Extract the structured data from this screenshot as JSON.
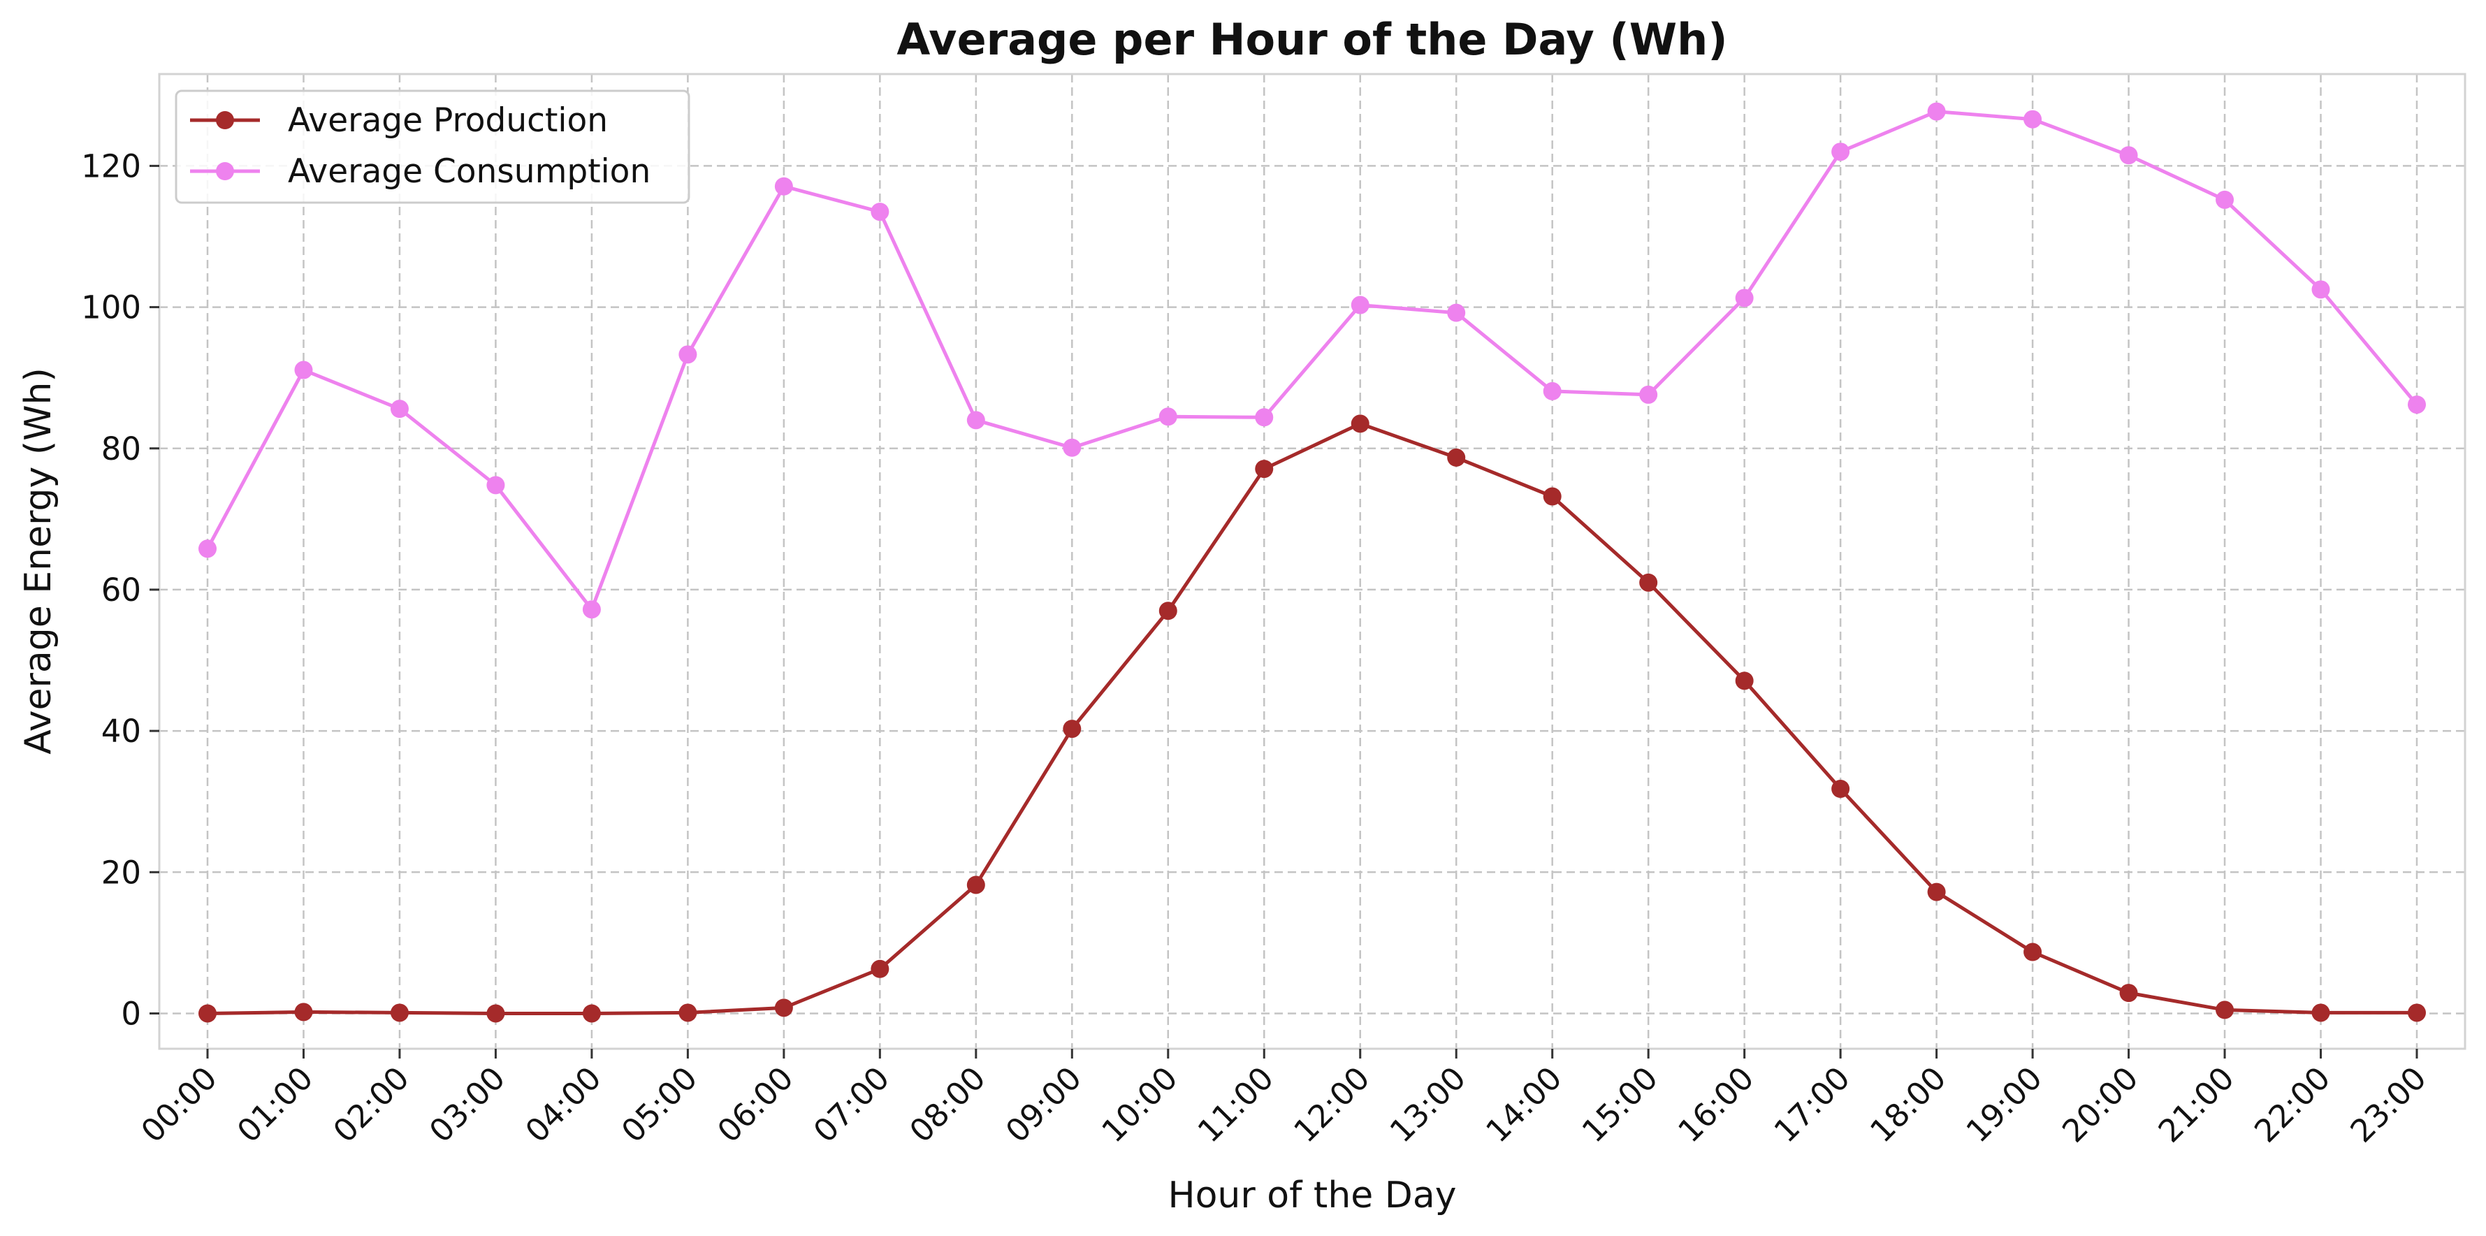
{
  "chart_data": {
    "type": "line",
    "title": "Average per Hour of the Day (Wh)",
    "xlabel": "Hour of the Day",
    "ylabel": "Average Energy (Wh)",
    "categories": [
      "00:00",
      "01:00",
      "02:00",
      "03:00",
      "04:00",
      "05:00",
      "06:00",
      "07:00",
      "08:00",
      "09:00",
      "10:00",
      "11:00",
      "12:00",
      "13:00",
      "14:00",
      "15:00",
      "16:00",
      "17:00",
      "18:00",
      "19:00",
      "20:00",
      "21:00",
      "22:00",
      "23:00"
    ],
    "yticks": [
      0,
      20,
      40,
      60,
      80,
      100,
      120
    ],
    "ylim": [
      -5,
      133
    ],
    "grid": true,
    "legend_position": "top-left",
    "series": [
      {
        "name": "Average Production",
        "color": "#a52a2a",
        "values": [
          0.0,
          0.2,
          0.1,
          0.0,
          0.0,
          0.1,
          0.8,
          6.3,
          18.2,
          40.3,
          57.0,
          77.1,
          83.5,
          78.7,
          73.2,
          61.0,
          47.1,
          31.8,
          17.2,
          8.7,
          2.9,
          0.5,
          0.1,
          0.1
        ]
      },
      {
        "name": "Average Consumption",
        "color": "#ee82ee",
        "values": [
          65.8,
          91.1,
          85.6,
          74.8,
          57.2,
          93.3,
          117.1,
          113.5,
          84.0,
          80.1,
          84.5,
          84.4,
          100.3,
          99.2,
          88.1,
          87.6,
          101.3,
          122.0,
          127.7,
          126.6,
          121.5,
          115.2,
          102.5,
          86.2
        ]
      }
    ]
  }
}
